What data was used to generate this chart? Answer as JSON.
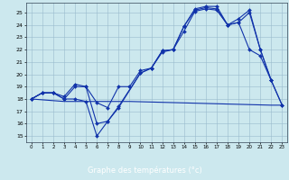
{
  "xlabel": "Graphe des températures (°c)",
  "bg_color": "#cce8ee",
  "grid_color": "#99bbcc",
  "line_color": "#1133aa",
  "xlabel_bg": "#2244bb",
  "xlim": [
    -0.5,
    23.5
  ],
  "ylim": [
    14.5,
    25.8
  ],
  "yticks": [
    15,
    16,
    17,
    18,
    19,
    20,
    21,
    22,
    23,
    24,
    25
  ],
  "xticks": [
    0,
    1,
    2,
    3,
    4,
    5,
    6,
    7,
    8,
    9,
    10,
    11,
    12,
    13,
    14,
    15,
    16,
    17,
    18,
    19,
    20,
    21,
    22,
    23
  ],
  "line1_x": [
    0,
    1,
    2,
    3,
    4,
    5,
    6,
    7,
    8,
    9,
    10,
    11,
    12,
    13,
    14,
    15,
    16,
    17,
    18,
    19,
    20,
    21,
    22
  ],
  "line1_y": [
    18.0,
    18.5,
    18.5,
    18.0,
    19.0,
    19.0,
    17.7,
    17.3,
    19.0,
    19.0,
    20.3,
    20.5,
    21.8,
    22.0,
    23.5,
    25.1,
    25.3,
    25.2,
    24.0,
    24.2,
    22.0,
    21.5,
    19.5
  ],
  "line2_x": [
    0,
    1,
    2,
    3,
    4,
    5,
    6,
    7,
    8,
    10,
    11,
    12,
    13,
    14,
    15,
    16,
    17,
    18,
    19,
    20,
    21,
    22,
    23
  ],
  "line2_y": [
    18.0,
    18.5,
    18.5,
    18.2,
    19.2,
    19.0,
    16.0,
    16.2,
    17.4,
    20.1,
    20.5,
    21.9,
    22.0,
    23.9,
    25.2,
    25.4,
    25.3,
    24.0,
    24.2,
    25.0,
    22.0,
    19.5,
    17.5
  ],
  "line3_x": [
    0,
    1,
    2,
    3,
    4,
    5,
    6,
    7,
    8,
    10,
    11,
    12,
    13,
    14,
    15,
    16,
    17,
    18,
    19,
    20,
    21,
    22,
    23
  ],
  "line3_y": [
    18.0,
    18.5,
    18.5,
    18.0,
    18.0,
    17.8,
    15.0,
    16.2,
    17.3,
    20.1,
    20.5,
    21.9,
    22.0,
    23.9,
    25.3,
    25.5,
    25.5,
    24.0,
    24.5,
    25.2,
    22.0,
    19.5,
    17.5
  ],
  "line4_x": [
    0,
    3,
    5,
    9,
    22,
    23
  ],
  "line4_y": [
    18.0,
    17.8,
    17.8,
    17.8,
    17.5,
    17.5
  ]
}
